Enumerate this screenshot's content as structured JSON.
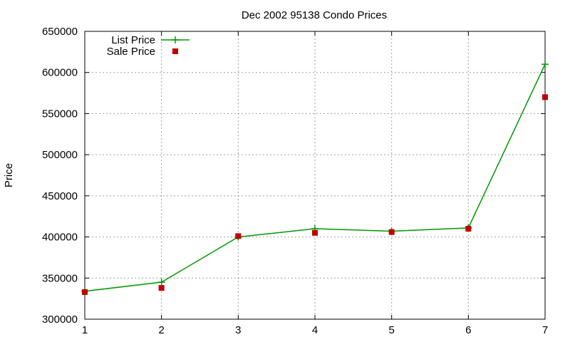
{
  "chart_data": {
    "type": "line",
    "title": "Dec 2002 95138 Condo Prices",
    "xlabel": "",
    "ylabel": "Price",
    "x": [
      1,
      2,
      3,
      4,
      5,
      6,
      7
    ],
    "xlim": [
      1,
      7
    ],
    "ylim": [
      300000,
      650000
    ],
    "xticks": [
      "1",
      "2",
      "3",
      "4",
      "5",
      "6",
      "7"
    ],
    "yticks": [
      "300000",
      "350000",
      "400000",
      "450000",
      "500000",
      "550000",
      "600000",
      "650000"
    ],
    "grid": true,
    "legend_position": "top-left",
    "series": [
      {
        "name": "List Price",
        "style": "line-with-plus-markers",
        "color": "#009900",
        "values": [
          334000,
          345000,
          400000,
          410000,
          407000,
          411000,
          610000
        ]
      },
      {
        "name": "Sale Price",
        "style": "square-markers",
        "color": "#c00000",
        "values": [
          333000,
          338000,
          401000,
          405000,
          406000,
          410000,
          570000
        ]
      }
    ]
  }
}
